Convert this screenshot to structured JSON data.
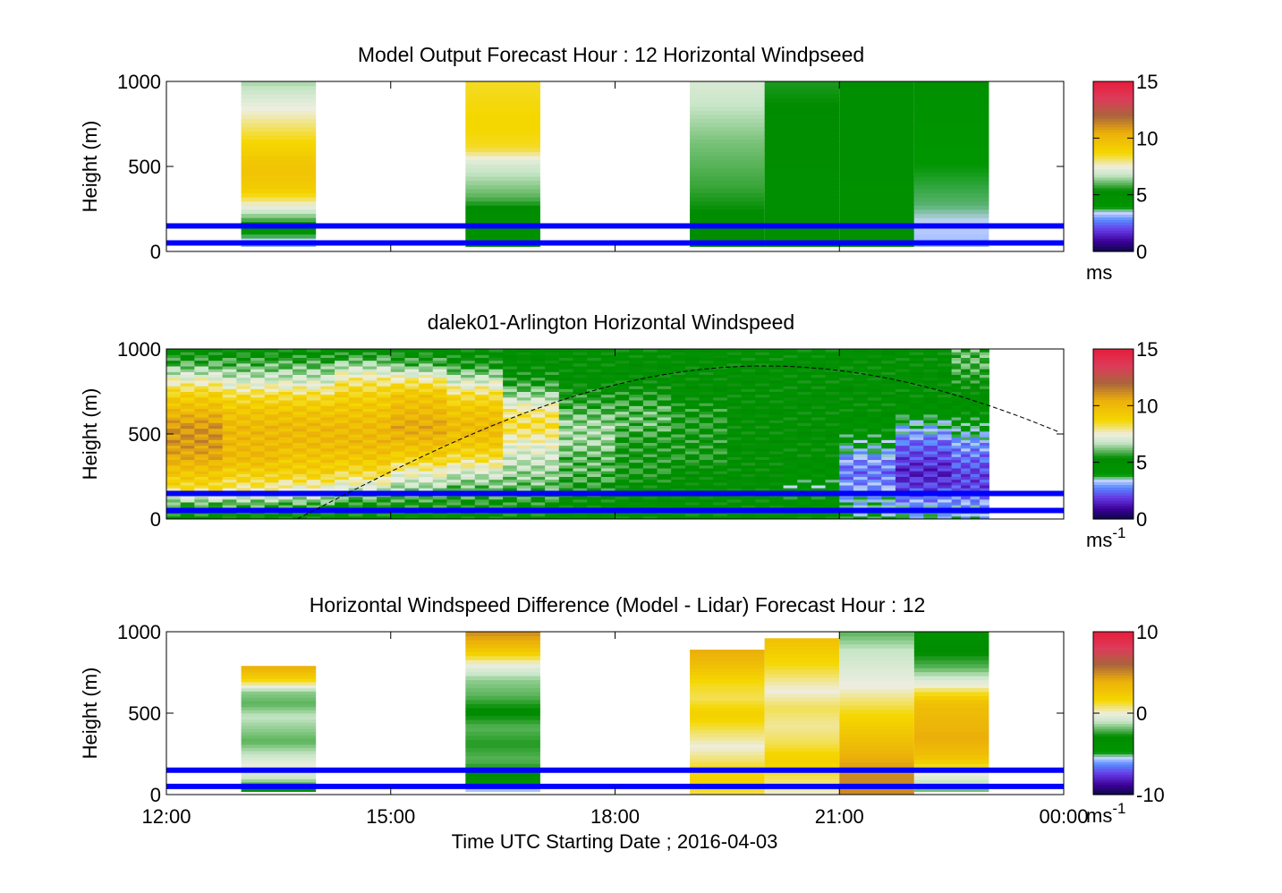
{
  "figure": {
    "xlabel": "Time UTC  Starting Date ; 2016-04-03"
  },
  "colors": {
    "overlay_lines": "#0000ff",
    "sun_curve": "#000000"
  },
  "chart_data": [
    {
      "type": "heatmap",
      "title": "Model Output   Forecast Hour : 12 Horizontal Windpseed",
      "ylabel": "Height (m)",
      "xlim": [
        12,
        24
      ],
      "ylim": [
        0,
        1000
      ],
      "x_ticks": [
        "12:00",
        "15:00",
        "18:00",
        "21:00",
        "00:00"
      ],
      "y_ticks": [
        "0",
        "500",
        "1000"
      ],
      "colorbar": {
        "range": [
          0,
          15
        ],
        "ticks": [
          "0",
          "5",
          "10",
          "15"
        ],
        "unit": "ms",
        "unit_sup": ""
      },
      "hlines": [
        50,
        150
      ],
      "cells": [
        {
          "x": [
            13,
            14
          ],
          "yrange": [
            30,
            1000
          ],
          "profile": [
            3,
            4,
            6,
            7.5,
            9,
            9.5,
            9.5,
            9,
            8.5,
            8,
            7.5,
            7,
            6.5
          ]
        },
        {
          "x": [
            16,
            17
          ],
          "yrange": [
            30,
            1000
          ],
          "profile": [
            4,
            5,
            5,
            6,
            6.5,
            7,
            8.5,
            8.7,
            8.7,
            8.6,
            8.5
          ]
        },
        {
          "x": [
            19,
            20
          ],
          "yrange": [
            30,
            1000
          ],
          "profile": [
            5.2,
            5.2,
            5.5,
            5.8,
            6,
            6.2,
            6.5,
            6.8,
            7.1
          ]
        },
        {
          "x": [
            20,
            21
          ],
          "yrange": [
            30,
            1000
          ],
          "profile": [
            5,
            5,
            5,
            5,
            5.1,
            5.2,
            5.4,
            5.6
          ]
        },
        {
          "x": [
            21,
            22
          ],
          "yrange": [
            30,
            1000
          ],
          "profile": [
            4.8,
            4.8,
            4.8,
            4.9,
            5,
            5,
            5,
            5
          ]
        },
        {
          "x": [
            22,
            23
          ],
          "yrange": [
            30,
            1000
          ],
          "profile": [
            3.2,
            3.4,
            3.7,
            3.8,
            3.9,
            4,
            4.3,
            4.6,
            4.9
          ]
        }
      ]
    },
    {
      "type": "heatmap",
      "title": "dalek01-Arlington  Horizontal Windspeed",
      "ylabel": "Height (m)",
      "xlim": [
        12,
        24
      ],
      "ylim": [
        0,
        1000
      ],
      "x_ticks": [
        "12:00",
        "15:00",
        "18:00",
        "21:00",
        "00:00"
      ],
      "y_ticks": [
        "0",
        "500",
        "1000"
      ],
      "colorbar": {
        "range": [
          0,
          15
        ],
        "ticks": [
          "0",
          "5",
          "10",
          "15"
        ],
        "unit": "ms",
        "unit_sup": "-1"
      },
      "hlines": [
        50,
        150
      ],
      "sun_elevation_curve": {
        "x": [
          13.75,
          20,
          24
        ],
        "y": [
          0,
          900,
          500
        ]
      },
      "time_columns": [
        {
          "x": [
            12,
            12.75
          ],
          "profile": [
            5,
            6,
            8.5,
            9.5,
            10.5,
            11,
            11,
            10,
            9,
            7.5,
            6,
            5
          ]
        },
        {
          "x": [
            12.75,
            13.5
          ],
          "profile": [
            5,
            6,
            8,
            9,
            10,
            10,
            10,
            9.5,
            8.5,
            7,
            6,
            5
          ]
        },
        {
          "x": [
            13.5,
            14.25
          ],
          "profile": [
            5,
            6,
            7.5,
            9,
            9.5,
            10,
            10,
            9.5,
            8.5,
            7,
            6,
            5
          ]
        },
        {
          "x": [
            14.25,
            15
          ],
          "profile": [
            5,
            5.5,
            7,
            8.5,
            9.5,
            10,
            10,
            9.5,
            9,
            8,
            6.5,
            5
          ]
        },
        {
          "x": [
            15,
            15.75
          ],
          "profile": [
            5,
            5.5,
            6.5,
            7.5,
            9,
            10,
            10.5,
            10,
            9.5,
            8,
            6,
            5
          ]
        },
        {
          "x": [
            15.75,
            16.5
          ],
          "profile": [
            5,
            5.5,
            6,
            7,
            8.5,
            9.5,
            10,
            9.5,
            8.5,
            7,
            5.5,
            5
          ]
        },
        {
          "x": [
            16.5,
            17.25
          ],
          "profile": [
            5,
            5.5,
            6,
            6.5,
            7,
            7.5,
            8.5,
            8,
            6.5,
            5.5,
            5,
            5
          ]
        },
        {
          "x": [
            17.25,
            18
          ],
          "profile": [
            5,
            5,
            5.5,
            6,
            6,
            6.5,
            6.5,
            6,
            5.5,
            5,
            5,
            5
          ]
        },
        {
          "x": [
            18,
            18.75
          ],
          "profile": [
            5,
            5,
            5,
            5.5,
            5.5,
            5.5,
            6,
            6,
            5.5,
            5,
            5,
            5
          ]
        },
        {
          "x": [
            18.75,
            19.5
          ],
          "profile": [
            5,
            5,
            5,
            5,
            5.5,
            5.5,
            5.5,
            5.5,
            5,
            5,
            5,
            5
          ]
        },
        {
          "x": [
            19.5,
            20.25
          ],
          "profile": [
            5,
            5,
            5,
            5,
            5,
            5,
            5,
            5,
            5,
            5,
            5,
            5
          ]
        },
        {
          "x": [
            20.25,
            21
          ],
          "profile": [
            5,
            4.5,
            4,
            4.5,
            5,
            5,
            5,
            5,
            5,
            5,
            5,
            5
          ]
        },
        {
          "x": [
            21,
            21.75
          ],
          "profile": [
            4,
            3.5,
            3,
            2.5,
            3,
            4,
            4.5,
            5,
            5,
            5,
            5,
            5
          ]
        },
        {
          "x": [
            21.75,
            22.5
          ],
          "profile": [
            3.5,
            3,
            2,
            1.5,
            2,
            2.5,
            3.5,
            4.5,
            5,
            5,
            5,
            5
          ]
        },
        {
          "x": [
            22.5,
            23
          ],
          "profile": [
            3.5,
            3,
            2,
            2,
            2.5,
            3,
            4,
            4.5,
            5,
            5.5,
            6,
            6
          ]
        }
      ]
    },
    {
      "type": "heatmap",
      "title": "Horizontal Windspeed Difference (Model - Lidar) Forecast Hour : 12",
      "ylabel": "Height (m)",
      "xlim": [
        12,
        24
      ],
      "ylim": [
        0,
        1000
      ],
      "x_ticks": [
        "12:00",
        "15:00",
        "18:00",
        "21:00",
        "00:00"
      ],
      "y_ticks": [
        "0",
        "500",
        "1000"
      ],
      "colorbar": {
        "range": [
          -10,
          10
        ],
        "ticks": [
          "-10",
          "0",
          "10"
        ],
        "unit": "ms",
        "unit_sup": "-1"
      },
      "hlines": [
        50,
        150
      ],
      "cells": [
        {
          "x": [
            13,
            14
          ],
          "yrange": [
            20,
            790
          ],
          "profile": [
            -4,
            -1,
            0,
            -1,
            -2,
            -1.5,
            -1,
            -2,
            -1.5,
            2,
            4
          ]
        },
        {
          "x": [
            16,
            17
          ],
          "yrange": [
            20,
            1000
          ],
          "profile": [
            -6,
            -3,
            -2,
            -2.5,
            -2,
            -3,
            -2,
            -1.5,
            0,
            3,
            5
          ]
        },
        {
          "x": [
            19,
            20
          ],
          "yrange": [
            0,
            890
          ],
          "profile": [
            1,
            2,
            1,
            0,
            1,
            2,
            1,
            1.5,
            3,
            4
          ]
        },
        {
          "x": [
            20,
            21
          ],
          "yrange": [
            0,
            960
          ],
          "profile": [
            0,
            1,
            2,
            1,
            0.5,
            1,
            0,
            1,
            2,
            3
          ]
        },
        {
          "x": [
            21,
            22
          ],
          "yrange": [
            0,
            1000
          ],
          "profile": [
            5,
            5,
            4,
            3,
            2,
            1,
            0,
            -0.5,
            -1,
            -2
          ]
        },
        {
          "x": [
            22,
            23
          ],
          "yrange": [
            20,
            1000
          ],
          "profile": [
            -2,
            0,
            3,
            4,
            3.5,
            3,
            0,
            -2,
            -3,
            -4
          ]
        }
      ]
    }
  ]
}
